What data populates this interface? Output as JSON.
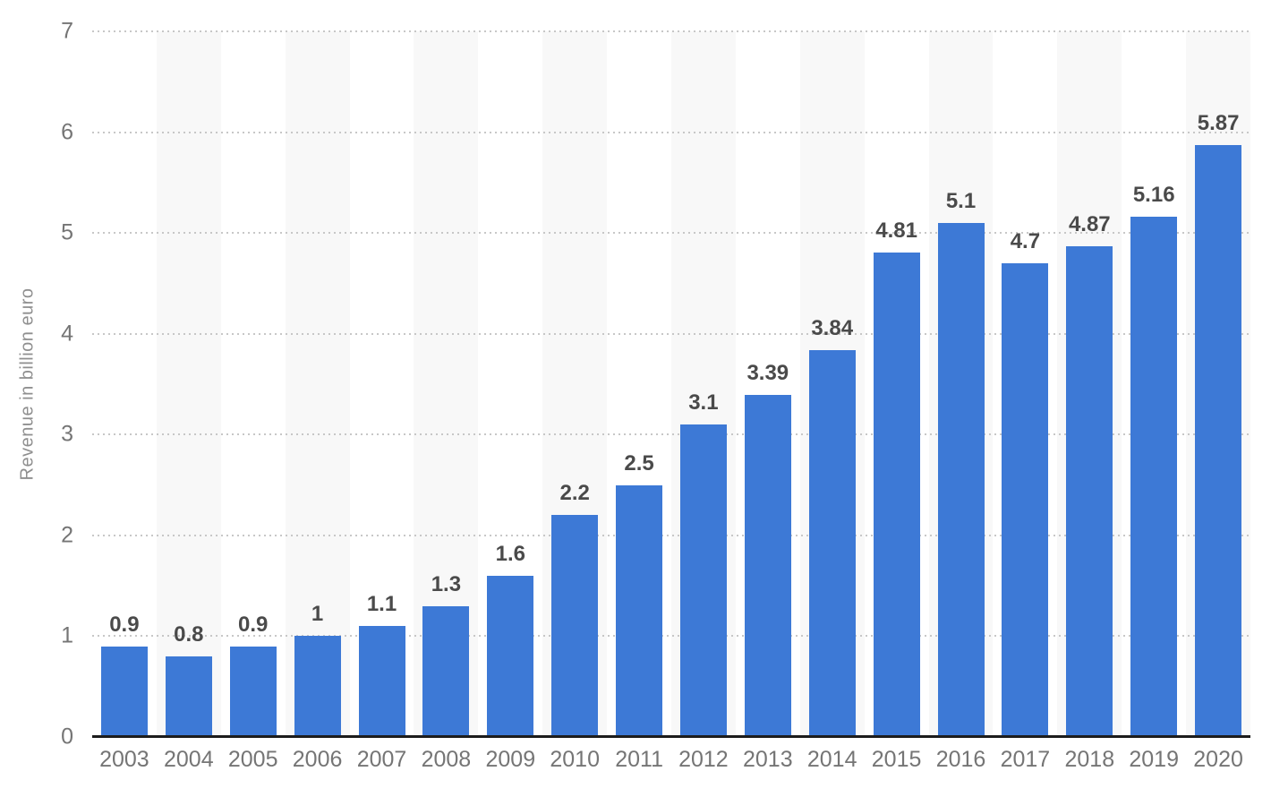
{
  "chart_data": {
    "type": "bar",
    "title": "",
    "categories": [
      "2003",
      "2004",
      "2005",
      "2006",
      "2007",
      "2008",
      "2009",
      "2010",
      "2011",
      "2012",
      "2013",
      "2014",
      "2015",
      "2016",
      "2017",
      "2018",
      "2019",
      "2020"
    ],
    "values": [
      0.9,
      0.8,
      0.9,
      1,
      1.1,
      1.3,
      1.6,
      2.2,
      2.5,
      3.1,
      3.39,
      3.84,
      4.81,
      5.1,
      4.7,
      4.87,
      5.16,
      5.87
    ],
    "xlabel": "",
    "ylabel": "Revenue in billion euro",
    "ylim": [
      0,
      7
    ],
    "yticks": [
      0,
      1,
      2,
      3,
      4,
      5,
      6,
      7
    ],
    "grid": "horizontal-dotted",
    "legend": "none",
    "column_bands": "alternating-light-gray-on-even-years",
    "colors": {
      "bar": "#3d79d6",
      "band": "#f8f8f8",
      "gridline": "#c7c7c7",
      "axis_line": "#1c1c1c",
      "tick_label": "#757575",
      "value_label": "#4a4a4a",
      "axis_title": "#8f8f8f",
      "background": "#ffffff"
    }
  }
}
